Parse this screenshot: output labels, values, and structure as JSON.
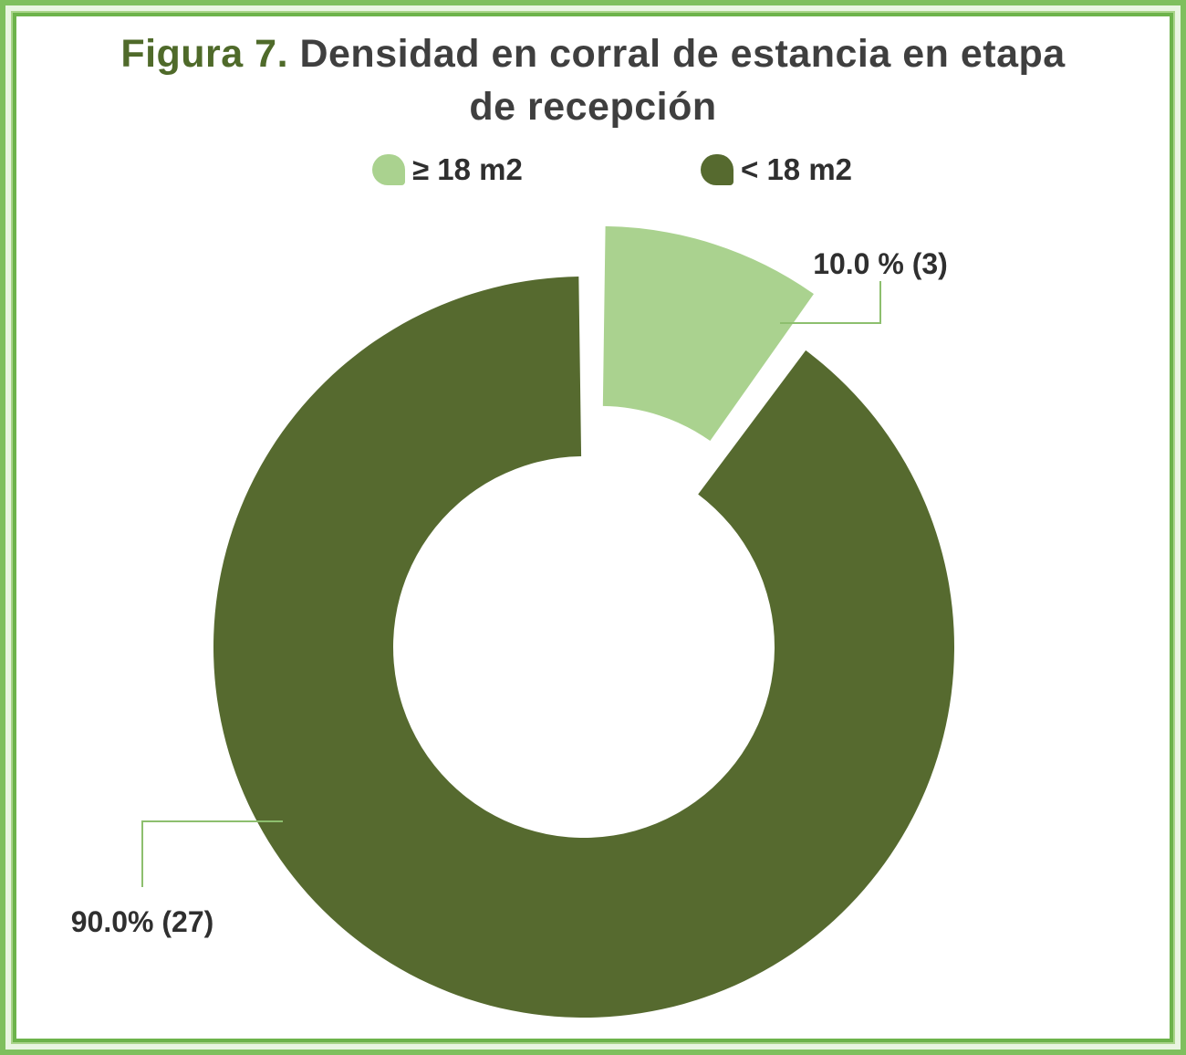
{
  "figure": {
    "prefix": "Figura 7.",
    "title_line1": "Densidad en corral de estancia en etapa",
    "title_line2": "de recepción"
  },
  "chart_data": {
    "type": "pie",
    "style": "donut",
    "slices": [
      {
        "label": "≥ 18 m2",
        "value": 3,
        "percent": 10.0,
        "data_label": "10.0 % (3)",
        "color": "#aad28f",
        "exploded": true
      },
      {
        "label": "< 18 m2",
        "value": 27,
        "percent": 90.0,
        "data_label": "90.0% (27)",
        "color": "#566a2f",
        "exploded": false
      }
    ],
    "legend_position": "top"
  },
  "colors": {
    "border": "#6db34b",
    "prefix": "#4f6a2a",
    "text": "#3f3f3f",
    "leader_line": "#8dbf6e"
  }
}
